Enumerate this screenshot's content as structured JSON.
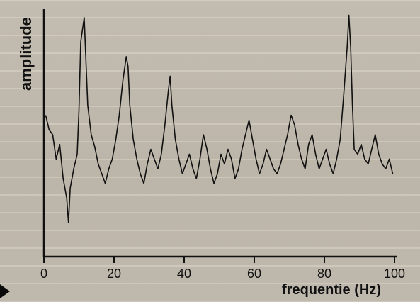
{
  "chart_data": {
    "type": "line",
    "title": "",
    "xlabel": "frequentie (Hz)",
    "ylabel": "amplitude",
    "xlim": [
      0,
      100
    ],
    "ylim": [
      0,
      1
    ],
    "xticks": [
      0,
      20,
      40,
      60,
      80,
      100
    ],
    "grid": false,
    "series": [
      {
        "color": "#111111",
        "x": [
          0.5,
          1.5,
          2.5,
          3.5,
          4.5,
          5.5,
          6.5,
          7.0,
          7.5,
          8.5,
          9.5,
          10.0,
          10.5,
          11.5,
          12.5,
          13.5,
          14.5,
          15.5,
          16.5,
          17.5,
          18.5,
          19.5,
          20.5,
          21.5,
          22.5,
          23.5,
          24.0,
          24.5,
          25.5,
          26.5,
          27.5,
          28.5,
          29.5,
          30.5,
          31.5,
          32.5,
          33.5,
          34.5,
          35.5,
          36.0,
          36.5,
          37.5,
          38.5,
          39.5,
          40.5,
          41.5,
          42.5,
          43.5,
          44.5,
          45.5,
          46.5,
          47.5,
          48.5,
          49.5,
          50.5,
          51.5,
          52.5,
          53.5,
          54.5,
          55.5,
          56.5,
          57.5,
          58.5,
          59.5,
          60.5,
          61.5,
          62.5,
          63.5,
          64.5,
          65.5,
          66.5,
          67.5,
          68.5,
          69.5,
          70.5,
          71.5,
          72.5,
          73.5,
          74.5,
          75.5,
          76.5,
          77.5,
          78.5,
          79.5,
          80.5,
          81.5,
          82.5,
          83.5,
          84.5,
          85.5,
          86.5,
          87.0,
          87.5,
          88.0,
          88.5,
          89.5,
          90.5,
          91.5,
          92.5,
          93.5,
          94.5,
          95.5,
          96.5,
          97.5,
          98.5,
          99.5
        ],
        "y": [
          0.58,
          0.52,
          0.5,
          0.4,
          0.46,
          0.32,
          0.24,
          0.14,
          0.28,
          0.36,
          0.42,
          0.6,
          0.88,
          0.98,
          0.62,
          0.5,
          0.45,
          0.38,
          0.34,
          0.3,
          0.36,
          0.4,
          0.48,
          0.58,
          0.72,
          0.82,
          0.78,
          0.62,
          0.48,
          0.4,
          0.34,
          0.3,
          0.38,
          0.44,
          0.4,
          0.36,
          0.42,
          0.54,
          0.68,
          0.74,
          0.62,
          0.48,
          0.4,
          0.34,
          0.38,
          0.42,
          0.36,
          0.32,
          0.4,
          0.5,
          0.44,
          0.36,
          0.3,
          0.34,
          0.42,
          0.38,
          0.44,
          0.4,
          0.32,
          0.36,
          0.44,
          0.5,
          0.56,
          0.48,
          0.4,
          0.34,
          0.38,
          0.44,
          0.4,
          0.36,
          0.34,
          0.38,
          0.44,
          0.5,
          0.58,
          0.54,
          0.46,
          0.4,
          0.36,
          0.46,
          0.5,
          0.42,
          0.36,
          0.4,
          0.44,
          0.38,
          0.34,
          0.4,
          0.48,
          0.66,
          0.86,
          0.99,
          0.86,
          0.62,
          0.44,
          0.42,
          0.46,
          0.4,
          0.38,
          0.44,
          0.5,
          0.42,
          0.38,
          0.36,
          0.4,
          0.34
        ]
      }
    ]
  }
}
